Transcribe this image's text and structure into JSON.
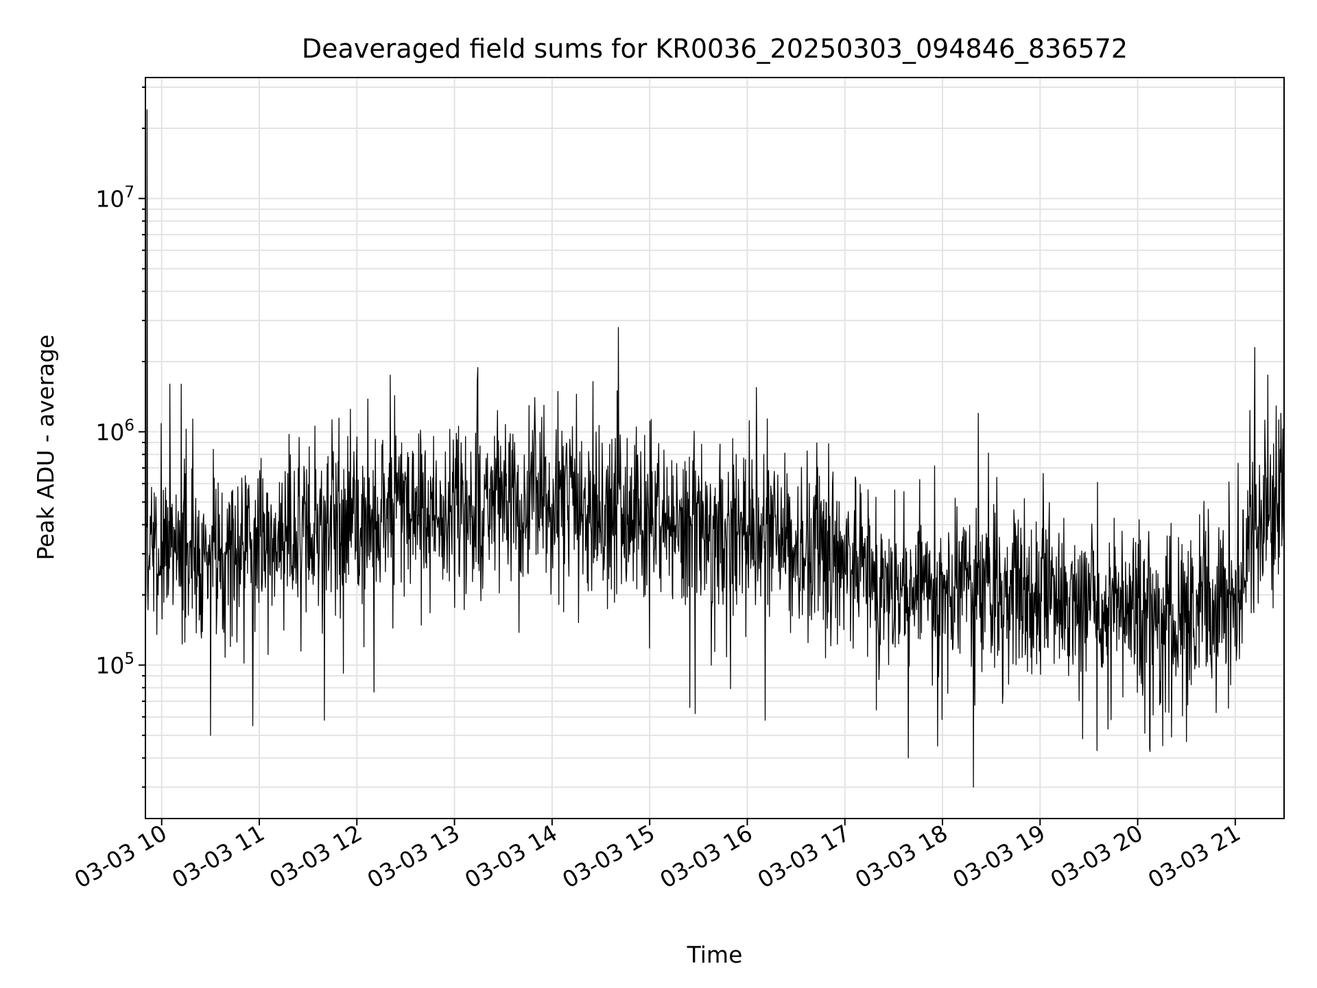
{
  "chart_data": {
    "type": "line",
    "title": "Deaveraged field sums for KR0036_20250303_094846_836572",
    "xlabel": "Time",
    "ylabel": "Peak ADU - average",
    "y_scale": "log",
    "ylim": [
      22000,
      33000000
    ],
    "xlim": [
      "2025-03-03 09:50",
      "2025-03-03 21:30"
    ],
    "grid": true,
    "line_color": "#000000",
    "x_ticks": [
      "03-03 10",
      "03-03 11",
      "03-03 12",
      "03-03 13",
      "03-03 14",
      "03-03 15",
      "03-03 16",
      "03-03 17",
      "03-03 18",
      "03-03 19",
      "03-03 20",
      "03-03 21"
    ],
    "y_ticks": [
      {
        "value": 100000,
        "base": "10",
        "exp": "5"
      },
      {
        "value": 1000000,
        "base": "10",
        "exp": "6"
      },
      {
        "value": 10000000,
        "base": "10",
        "exp": "7"
      }
    ],
    "series": [
      {
        "x_start": "2025-03-03 09:50",
        "x_end": "2025-03-03 21:30",
        "level_profile": [
          [
            "09:50",
            280000
          ],
          [
            "10:05",
            330000
          ],
          [
            "10:30",
            300000
          ],
          [
            "11:00",
            340000
          ],
          [
            "11:30",
            370000
          ],
          [
            "12:00",
            420000
          ],
          [
            "12:30",
            460000
          ],
          [
            "13:00",
            430000
          ],
          [
            "13:30",
            470000
          ],
          [
            "14:00",
            460000
          ],
          [
            "14:30",
            470000
          ],
          [
            "15:00",
            400000
          ],
          [
            "15:30",
            370000
          ],
          [
            "16:00",
            400000
          ],
          [
            "16:30",
            330000
          ],
          [
            "17:00",
            280000
          ],
          [
            "17:30",
            210000
          ],
          [
            "18:00",
            220000
          ],
          [
            "18:30",
            200000
          ],
          [
            "19:00",
            185000
          ],
          [
            "19:30",
            180000
          ],
          [
            "20:00",
            165000
          ],
          [
            "20:30",
            160000
          ],
          [
            "21:00",
            175000
          ],
          [
            "21:10",
            380000
          ],
          [
            "21:30",
            520000
          ]
        ],
        "max": {
          "x": "2025-03-03 09:51",
          "y": 24000000
        },
        "min": {
          "x": "2025-03-03 18:19",
          "y": 30000
        },
        "peaks": [
          {
            "x": "2025-03-03 21:12",
            "y": 2300000
          },
          {
            "x": "2025-03-03 21:20",
            "y": 1750000
          },
          {
            "x": "2025-03-03 13:14",
            "y": 1650000
          },
          {
            "x": "2025-03-03 10:05",
            "y": 1600000
          },
          {
            "x": "2025-03-03 10:12",
            "y": 1600000
          },
          {
            "x": "2025-03-03 14:40",
            "y": 1500000
          },
          {
            "x": "2025-03-03 14:15",
            "y": 1450000
          },
          {
            "x": "2025-03-03 13:55",
            "y": 1300000
          },
          {
            "x": "2025-03-03 11:56",
            "y": 1250000
          },
          {
            "x": "2025-03-03 18:22",
            "y": 1200000
          },
          {
            "x": "2025-03-03 21:28",
            "y": 1200000
          }
        ],
        "dips": [
          {
            "x": "2025-03-03 10:30",
            "y": 50000
          },
          {
            "x": "2025-03-03 10:56",
            "y": 55000
          },
          {
            "x": "2025-03-03 11:40",
            "y": 58000
          },
          {
            "x": "2025-03-03 15:28",
            "y": 62000
          },
          {
            "x": "2025-03-03 16:11",
            "y": 58000
          },
          {
            "x": "2025-03-03 17:39",
            "y": 40000
          },
          {
            "x": "2025-03-03 17:57",
            "y": 45000
          },
          {
            "x": "2025-03-03 19:35",
            "y": 43000
          },
          {
            "x": "2025-03-03 20:30",
            "y": 47000
          }
        ]
      }
    ]
  }
}
